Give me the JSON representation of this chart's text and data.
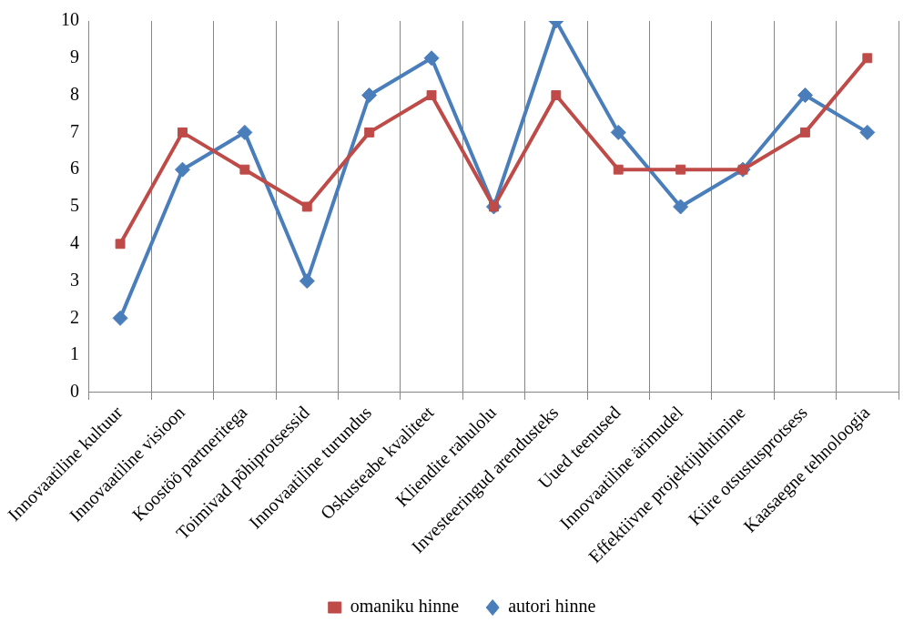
{
  "chart_data": {
    "type": "line",
    "categories": [
      "Innovaatiline kultuur",
      "Innovaatiline visioon",
      "Koostöö partneritega",
      "Toimivad põhiprotsessid",
      "Innovaatiline turundus",
      "Oskusteabe kvaliteet",
      "Kliendite rahulolu",
      "Investeeringud arendusteks",
      "Uued teenused",
      "Innovaatiline ärimudel",
      "Effektiivne projektijuhtimine",
      "Kiire otsustusprotsess",
      "Kaasaegne tehnoloogia"
    ],
    "series": [
      {
        "name": "autori hinne",
        "color": "#4a7ebb",
        "marker": "diamond",
        "values": [
          2,
          6,
          7,
          3,
          8,
          9,
          5,
          10,
          7,
          5,
          6,
          8,
          7
        ]
      },
      {
        "name": "omaniku hinne",
        "color": "#be4b48",
        "marker": "square",
        "values": [
          4,
          7,
          6,
          5,
          7,
          8,
          5,
          8,
          6,
          6,
          6,
          7,
          9
        ]
      }
    ],
    "ylim": [
      0,
      10
    ],
    "yticks": [
      0,
      1,
      2,
      3,
      4,
      5,
      6,
      7,
      8,
      9,
      10
    ],
    "grid": "x",
    "legend": "bottom",
    "line_style": "solid"
  }
}
